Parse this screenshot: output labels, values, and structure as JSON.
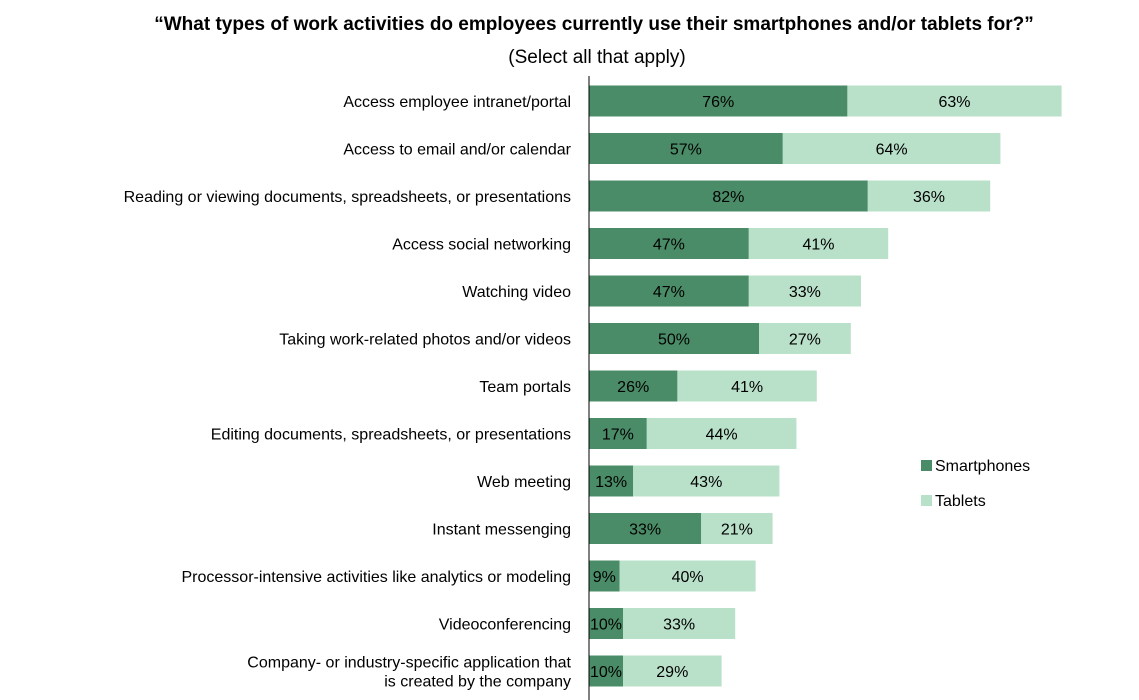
{
  "colors": {
    "smartphones": "#4a8c67",
    "tablets": "#b9e0c9",
    "axis": "#000000"
  },
  "chart_data": {
    "type": "bar",
    "orientation": "horizontal",
    "stacked": true,
    "title": "“What types of work activities do employees currently use their smartphones and/or tablets for?”",
    "subtitle": "(Select all that apply)",
    "categories": [
      [
        "Access employee intranet/portal"
      ],
      [
        "Access to email and/or calendar"
      ],
      [
        "Reading or viewing documents, spreadsheets, or presentations"
      ],
      [
        "Access social networking"
      ],
      [
        "Watching video"
      ],
      [
        "Taking work-related photos and/or videos"
      ],
      [
        "Team portals"
      ],
      [
        "Editing documents, spreadsheets, or presentations"
      ],
      [
        "Web meeting"
      ],
      [
        "Instant messenging"
      ],
      [
        "Processor-intensive activities like analytics or modeling"
      ],
      [
        "Videoconferencing"
      ],
      [
        "Company- or industry-specific application that",
        "is created by the company"
      ]
    ],
    "series": [
      {
        "name": "Smartphones",
        "values": [
          76,
          57,
          82,
          47,
          47,
          50,
          26,
          17,
          13,
          33,
          9,
          10,
          10
        ]
      },
      {
        "name": "Tablets",
        "values": [
          63,
          64,
          36,
          41,
          33,
          27,
          41,
          44,
          43,
          21,
          40,
          33,
          29
        ]
      }
    ],
    "value_suffix": "%",
    "grid": false,
    "legend_position": "right"
  }
}
